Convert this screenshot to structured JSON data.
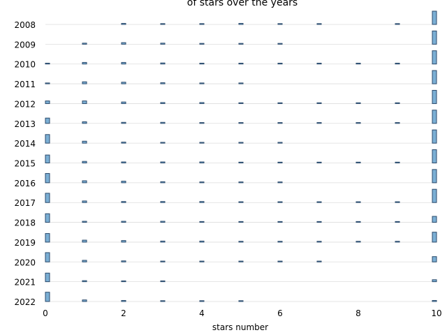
{
  "chart_data": {
    "type": "bar",
    "title": "of stars over the years",
    "xlabel": "stars number",
    "ylabel": "",
    "xlim": [
      0,
      10
    ],
    "x_ticks": [
      "0",
      "2",
      "4",
      "6",
      "8",
      "10"
    ],
    "x": [
      0,
      1,
      2,
      3,
      4,
      5,
      6,
      7,
      8,
      9,
      10
    ],
    "grid": "horizontal",
    "bar_color": "#7bafd4",
    "bar_edge_color": "#2b4a6b",
    "series": [
      {
        "name": "2008",
        "values": [
          0.0,
          0.0,
          0.08,
          0.03,
          0.03,
          0.08,
          0.03,
          0.03,
          0.0,
          0.03,
          1.0
        ]
      },
      {
        "name": "2009",
        "values": [
          0.0,
          0.08,
          0.12,
          0.08,
          0.03,
          0.03,
          0.03,
          0.0,
          0.0,
          0.0,
          1.0
        ]
      },
      {
        "name": "2010",
        "values": [
          0.03,
          0.12,
          0.12,
          0.08,
          0.03,
          0.03,
          0.03,
          0.03,
          0.03,
          0.03,
          1.0
        ]
      },
      {
        "name": "2011",
        "values": [
          0.03,
          0.15,
          0.12,
          0.08,
          0.03,
          0.03,
          0.0,
          0.0,
          0.0,
          0.0,
          1.0
        ]
      },
      {
        "name": "2012",
        "values": [
          0.2,
          0.2,
          0.12,
          0.08,
          0.08,
          0.03,
          0.03,
          0.03,
          0.03,
          0.03,
          1.0
        ]
      },
      {
        "name": "2013",
        "values": [
          0.4,
          0.12,
          0.08,
          0.08,
          0.03,
          0.03,
          0.03,
          0.03,
          0.03,
          0.03,
          1.0
        ]
      },
      {
        "name": "2014",
        "values": [
          0.65,
          0.15,
          0.08,
          0.03,
          0.03,
          0.03,
          0.03,
          0.0,
          0.0,
          0.0,
          1.0
        ]
      },
      {
        "name": "2015",
        "values": [
          0.6,
          0.12,
          0.08,
          0.08,
          0.08,
          0.03,
          0.03,
          0.03,
          0.03,
          0.03,
          1.0
        ]
      },
      {
        "name": "2016",
        "values": [
          0.7,
          0.15,
          0.12,
          0.08,
          0.03,
          0.03,
          0.03,
          0.0,
          0.0,
          0.0,
          1.0
        ]
      },
      {
        "name": "2017",
        "values": [
          0.7,
          0.12,
          0.08,
          0.08,
          0.08,
          0.03,
          0.03,
          0.03,
          0.03,
          0.03,
          1.0
        ]
      },
      {
        "name": "2018",
        "values": [
          0.65,
          0.08,
          0.08,
          0.08,
          0.03,
          0.03,
          0.03,
          0.03,
          0.03,
          0.03,
          0.45
        ]
      },
      {
        "name": "2019",
        "values": [
          0.65,
          0.15,
          0.12,
          0.08,
          0.08,
          0.03,
          0.03,
          0.03,
          0.03,
          0.03,
          0.75
        ]
      },
      {
        "name": "2020",
        "values": [
          0.7,
          0.12,
          0.08,
          0.03,
          0.03,
          0.03,
          0.03,
          0.03,
          0.0,
          0.0,
          0.4
        ]
      },
      {
        "name": "2021",
        "values": [
          0.65,
          0.08,
          0.03,
          0.03,
          0.0,
          0.0,
          0.0,
          0.0,
          0.0,
          0.0,
          0.15
        ]
      },
      {
        "name": "2022",
        "values": [
          0.7,
          0.12,
          0.08,
          0.03,
          0.03,
          0.03,
          0.0,
          0.0,
          0.0,
          0.0,
          0.08
        ]
      }
    ]
  }
}
